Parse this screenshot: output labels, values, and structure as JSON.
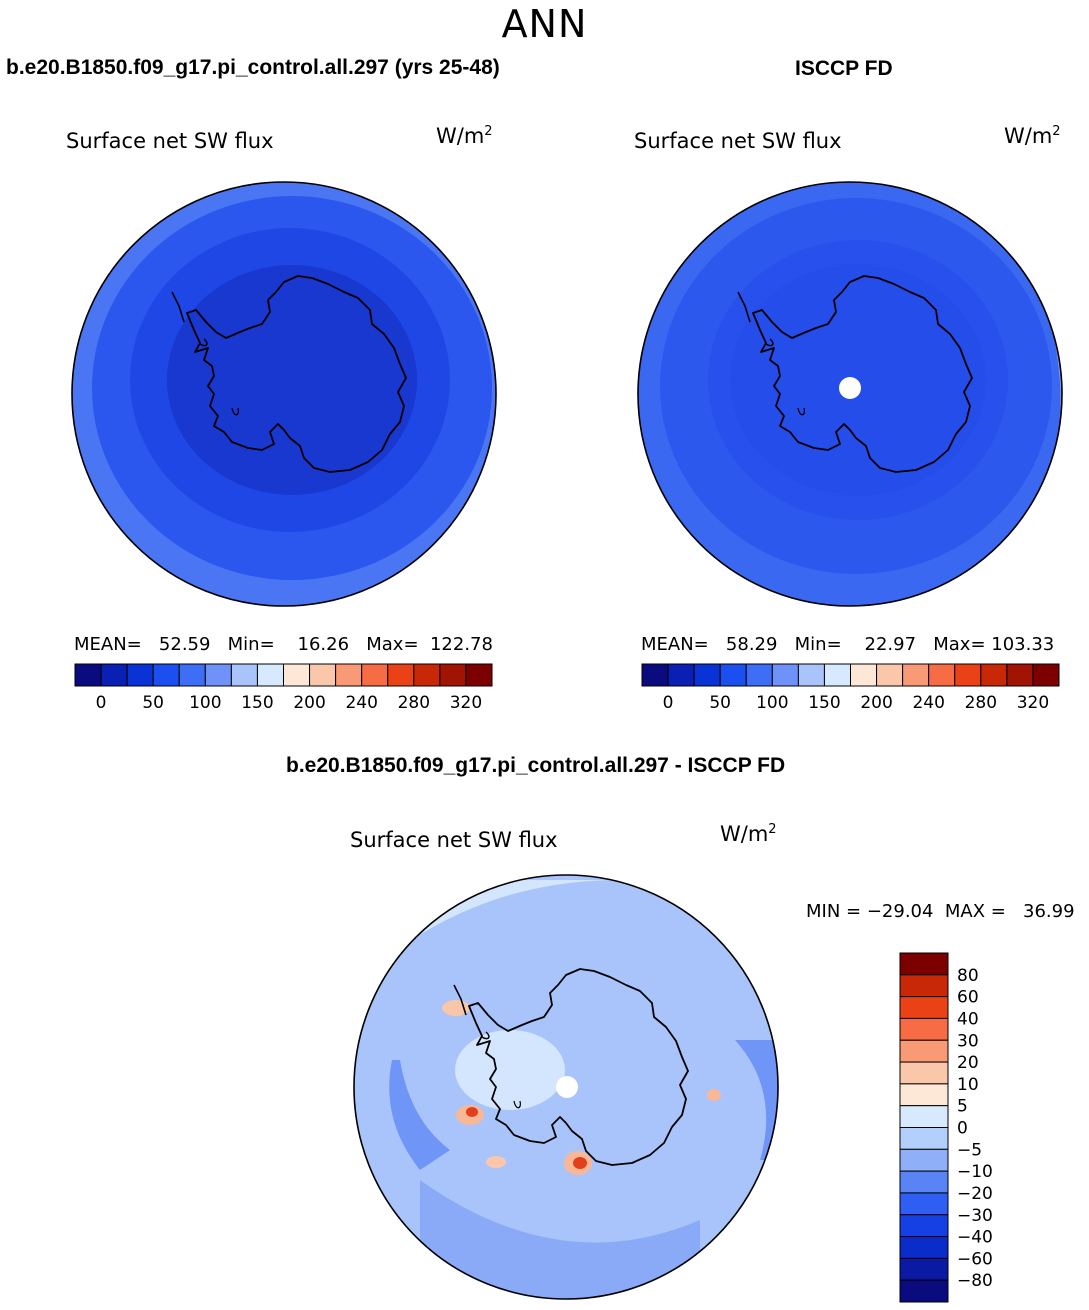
{
  "season": "ANN",
  "panels": [
    {
      "title": "b.e20.B1850.f09_g17.pi_control.all.297 (yrs 25-48)",
      "label": "Surface net SW flux",
      "units": "W/m",
      "units_sup": "2",
      "stats": "MEAN=   52.59   Min=    16.26   Max=  122.78"
    },
    {
      "title": "ISCCP FD",
      "label": "Surface net SW flux",
      "units": "W/m",
      "units_sup": "2",
      "stats": "MEAN=   58.29   Min=    22.97   Max= 103.33"
    },
    {
      "title": "b.e20.B1850.f09_g17.pi_control.all.297 - ISCCP FD",
      "label": "Surface net SW flux",
      "units": "W/m",
      "units_sup": "2",
      "stats": "MIN = −29.04  MAX =   36.99"
    }
  ],
  "colorbar_abs": {
    "colors": [
      "#0b0b80",
      "#0a20b4",
      "#0a33d6",
      "#1c4ff0",
      "#3e6ef5",
      "#6e92f8",
      "#a9c4fb",
      "#d6e9fd",
      "#fde8d8",
      "#fac7aa",
      "#f89a76",
      "#f76b45",
      "#ea4216",
      "#c82806",
      "#a11302",
      "#7d0000"
    ],
    "tick_labels": [
      "0",
      "50",
      "100",
      "150",
      "200",
      "240",
      "280",
      "320"
    ]
  },
  "colorbar_diff": {
    "colors": [
      "#7d0000",
      "#c82806",
      "#ea4216",
      "#f76b45",
      "#f89a76",
      "#fac7aa",
      "#fde8d8",
      "#d6e9fd",
      "#b3cffb",
      "#8fb0f8",
      "#5a83f5",
      "#2f5ff2",
      "#1440e4",
      "#0a2cc8",
      "#0a1aa2",
      "#0b0b80"
    ],
    "tick_labels": [
      "80",
      "60",
      "40",
      "30",
      "20",
      "10",
      "5",
      "0",
      "−5",
      "−10",
      "−20",
      "−30",
      "−40",
      "−60",
      "−80"
    ]
  },
  "colors": {
    "ocean_outer": "#4a76f3",
    "ocean_mid": "#2a56ee",
    "ocean_inner": "#1f46e6",
    "continent": "#1838cf",
    "diff_base": "#a8c4fb",
    "diff_light": "#d3e6fd",
    "diff_dark": "#7fa2f7",
    "diff_warm": "#f8b898",
    "diff_hot": "#e2401a"
  }
}
